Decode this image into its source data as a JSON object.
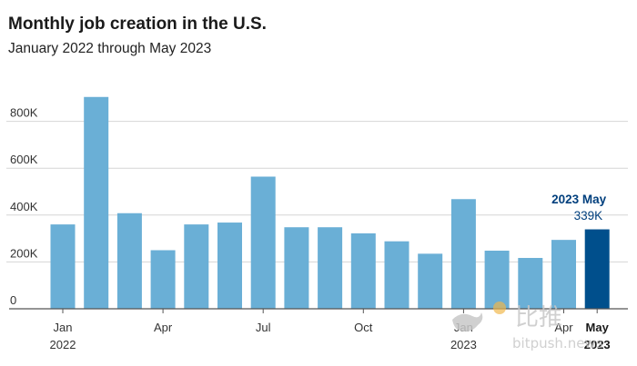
{
  "chart_data": {
    "type": "bar",
    "title": "Monthly job creation in the U.S.",
    "subtitle": "January 2022 through May 2023",
    "xlabel": "",
    "ylabel": "",
    "ylim": [
      0,
      1000
    ],
    "yticks": [
      {
        "value": 0,
        "label": "0"
      },
      {
        "value": 200,
        "label": "200K"
      },
      {
        "value": 400,
        "label": "400K"
      },
      {
        "value": 600,
        "label": "600K"
      },
      {
        "value": 800,
        "label": "800K"
      }
    ],
    "grid": true,
    "categories": [
      "Jan 2022",
      "Feb 2022",
      "Mar 2022",
      "Apr 2022",
      "May 2022",
      "Jun 2022",
      "Jul 2022",
      "Aug 2022",
      "Sep 2022",
      "Oct 2022",
      "Nov 2022",
      "Dec 2022",
      "Jan 2023",
      "Feb 2023",
      "Mar 2023",
      "Apr 2023",
      "May 2023"
    ],
    "values": [
      360,
      904,
      408,
      250,
      360,
      368,
      564,
      348,
      348,
      322,
      288,
      235,
      468,
      248,
      217,
      294,
      339
    ],
    "colors": {
      "default": "#6aafd6",
      "highlight": "#004f8c",
      "grid": "#d6d6d6",
      "axis": "#555555"
    },
    "highlight_index": 16,
    "x_tick_labels": [
      {
        "index": 0,
        "month": "Jan",
        "year": "2022",
        "bold": false
      },
      {
        "index": 3,
        "month": "Apr",
        "year": "",
        "bold": false
      },
      {
        "index": 6,
        "month": "Jul",
        "year": "",
        "bold": false
      },
      {
        "index": 9,
        "month": "Oct",
        "year": "",
        "bold": false
      },
      {
        "index": 12,
        "month": "Jan",
        "year": "2023",
        "bold": false
      },
      {
        "index": 15,
        "month": "Apr",
        "year": "",
        "bold": false
      },
      {
        "index": 16,
        "month": "May",
        "year": "2023",
        "bold": true
      }
    ],
    "annotation": {
      "index": 16,
      "title": "2023 May",
      "value": "339K"
    }
  },
  "watermark": {
    "cn": "比推",
    "en": "bitpush.news"
  }
}
